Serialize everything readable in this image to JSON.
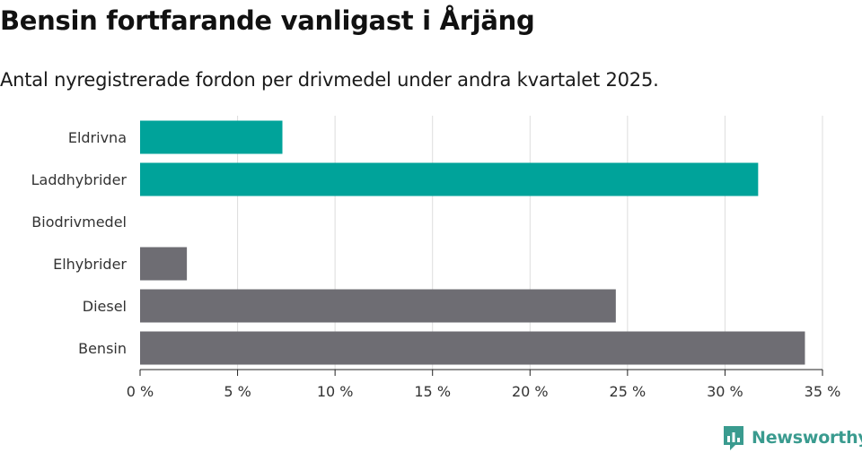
{
  "title": "Bensin fortfarande vanligast i Årjäng",
  "subtitle": "Antal nyregistrerade fordon per drivmedel under andra kvartalet 2025.",
  "brand": {
    "name": "Newsworthy",
    "icon": "newsworthy-logo-icon",
    "color": "#3a9b8f"
  },
  "chart_data": {
    "type": "bar",
    "orientation": "horizontal",
    "categories": [
      "Eldrivna",
      "Laddhybrider",
      "Biodrivmedel",
      "Elhybrider",
      "Diesel",
      "Bensin"
    ],
    "values": [
      7.3,
      31.7,
      0,
      2.4,
      24.4,
      34.1
    ],
    "colors": [
      "#00a39a",
      "#00a39a",
      "#00a39a",
      "#6e6d73",
      "#6e6d73",
      "#6e6d73"
    ],
    "xlim": [
      0,
      35
    ],
    "xticks": [
      0,
      5,
      10,
      15,
      20,
      25,
      30,
      35
    ],
    "xtick_labels": [
      "0 %",
      "5 %",
      "10 %",
      "15 %",
      "20 %",
      "25 %",
      "30 %",
      "35 %"
    ],
    "grid": "vertical",
    "legend": "none"
  }
}
